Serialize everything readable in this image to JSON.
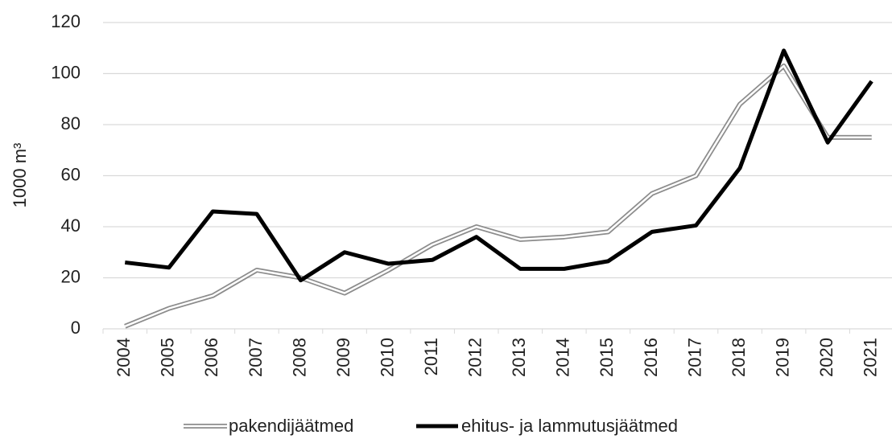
{
  "chart_data": {
    "type": "line",
    "y_label": "1000 m³",
    "categories": [
      "2004",
      "2005",
      "2006",
      "2007",
      "2008",
      "2009",
      "2010",
      "2011",
      "2012",
      "2013",
      "2014",
      "2015",
      "2016",
      "2017",
      "2018",
      "2019",
      "2020",
      "2021"
    ],
    "series": [
      {
        "name": "pakendijäätmed",
        "color": "#8c8c8c",
        "style": "double",
        "values": [
          1,
          8,
          13,
          23,
          20,
          14,
          23,
          33,
          40,
          35,
          36,
          38,
          53,
          60,
          88,
          103,
          75,
          75
        ]
      },
      {
        "name": "ehitus- ja lammutusjäätmed",
        "color": "#000000",
        "style": "solid",
        "values": [
          26,
          24,
          46,
          45,
          19,
          30,
          25.5,
          27,
          36,
          23.5,
          23.5,
          26.5,
          38,
          40.5,
          63,
          109,
          73,
          97
        ]
      }
    ],
    "ylim": [
      0,
      120
    ],
    "yticks": [
      0,
      20,
      40,
      60,
      80,
      100,
      120
    ],
    "grid": true,
    "legend": "bottom"
  }
}
